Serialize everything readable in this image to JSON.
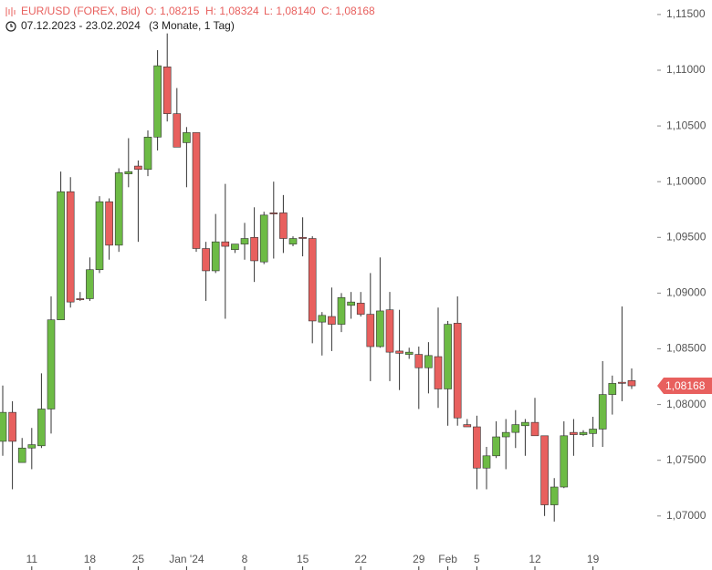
{
  "chart_data": {
    "type": "candlestick",
    "header": {
      "symbol": "EUR/USD (FOREX, Bid)",
      "open": "O: 1,08215",
      "high": "H: 1,08324",
      "low": "L: 1,08140",
      "close": "C: 1,08168",
      "range": "07.12.2023 - 23.02.2024",
      "period": "(3 Monate, 1 Tag)"
    },
    "up_color": "#6dbb45",
    "down_color": "#e8605e",
    "categories": [
      null,
      null,
      null,
      "11",
      null,
      null,
      null,
      null,
      null,
      "18",
      null,
      null,
      null,
      null,
      "25",
      null,
      null,
      null,
      null,
      "Jan '24",
      null,
      null,
      null,
      null,
      null,
      "8",
      null,
      null,
      null,
      null,
      null,
      "15",
      null,
      null,
      null,
      null,
      null,
      "22",
      null,
      null,
      null,
      null,
      null,
      "29",
      null,
      null,
      "Feb",
      null,
      null,
      "5",
      null,
      null,
      null,
      null,
      null,
      "12",
      null,
      null,
      null,
      null,
      null,
      "19",
      null,
      null,
      null,
      null
    ],
    "open": [
      1.0767,
      1.0793,
      1.0748,
      1.0761,
      1.0763,
      1.0796,
      1.0876,
      1.0991,
      1.0895,
      1.0895,
      1.0921,
      1.0982,
      1.0943,
      1.1007,
      1.1014,
      1.1011,
      1.104,
      1.1103,
      1.1061,
      1.1035,
      1.1044,
      1.094,
      1.092,
      1.0946,
      1.0939,
      1.0944,
      1.095,
      1.0928,
      1.0972,
      1.0972,
      1.0944,
      1.095,
      1.0949,
      1.0874,
      1.0879,
      1.0872,
      1.0889,
      1.0891,
      1.0881,
      1.0852,
      1.0885,
      1.0848,
      1.0845,
      1.0845,
      1.0833,
      1.0843,
      1.0814,
      1.0873,
      1.0782,
      1.078,
      1.0743,
      1.0754,
      1.0771,
      1.0775,
      1.0781,
      1.0784,
      1.0772,
      1.071,
      1.0726,
      1.0775,
      1.0773,
      1.0774,
      1.0778,
      1.0809,
      1.082,
      1.08215
    ],
    "high": [
      1.0817,
      1.0803,
      1.077,
      1.0779,
      1.0828,
      1.0897,
      1.1009,
      1.1004,
      1.0901,
      1.0932,
      1.0987,
      1.0985,
      1.1012,
      1.1039,
      1.1019,
      1.1046,
      1.1118,
      1.1133,
      1.1084,
      1.1049,
      1.1044,
      1.0946,
      1.0971,
      1.0998,
      1.0944,
      1.0963,
      1.0977,
      1.0973,
      1.1,
      1.0988,
      1.0951,
      1.0968,
      1.0951,
      1.0883,
      1.0905,
      1.09,
      1.0901,
      1.0901,
      1.0918,
      1.0932,
      1.0901,
      1.0885,
      1.0851,
      1.0852,
      1.0856,
      1.0887,
      1.0875,
      1.0897,
      1.0787,
      1.079,
      1.0762,
      1.0785,
      1.0787,
      1.0795,
      1.0787,
      1.0806,
      1.0772,
      1.0734,
      1.0785,
      1.0787,
      1.0777,
      1.0789,
      1.0839,
      1.0826,
      1.0888,
      1.08324
    ],
    "low": [
      1.0754,
      1.0724,
      1.0748,
      1.0742,
      1.0761,
      1.0774,
      1.0876,
      1.0887,
      1.0893,
      1.0893,
      1.0918,
      1.093,
      1.0937,
      1.0995,
      1.0946,
      1.1005,
      1.1028,
      1.1054,
      1.1031,
      1.0995,
      1.0937,
      1.0893,
      1.0918,
      1.0877,
      1.0936,
      1.093,
      1.091,
      1.0926,
      1.0931,
      1.0936,
      1.0942,
      1.0933,
      1.0855,
      1.0844,
      1.0848,
      1.0865,
      1.0877,
      1.0879,
      1.0821,
      1.0851,
      1.0821,
      1.0813,
      1.0841,
      1.0796,
      1.081,
      1.0797,
      1.0781,
      1.0781,
      1.078,
      1.0724,
      1.0724,
      1.0752,
      1.0742,
      1.0761,
      1.0754,
      1.0772,
      1.07,
      1.0695,
      1.0725,
      1.0754,
      1.0772,
      1.0762,
      1.0762,
      1.0791,
      1.0803,
      1.0814
    ],
    "close": [
      1.0793,
      1.0767,
      1.0761,
      1.0764,
      1.0796,
      1.0876,
      1.0991,
      1.0892,
      1.0894,
      1.0921,
      1.0982,
      1.0943,
      1.1008,
      1.1009,
      1.1011,
      1.104,
      1.1104,
      1.1061,
      1.1031,
      1.1044,
      1.094,
      1.092,
      1.0946,
      1.0942,
      1.0944,
      1.0949,
      1.0929,
      1.097,
      1.0971,
      1.0949,
      1.0949,
      1.0949,
      1.0875,
      1.088,
      1.0872,
      1.0896,
      1.0892,
      1.0881,
      1.0852,
      1.0884,
      1.0847,
      1.0846,
      1.0847,
      1.0833,
      1.0844,
      1.0814,
      1.0872,
      1.0788,
      1.078,
      1.0743,
      1.0754,
      1.0771,
      1.0775,
      1.0782,
      1.0784,
      1.0772,
      1.071,
      1.0726,
      1.0772,
      1.0773,
      1.0775,
      1.0778,
      1.0809,
      1.0819,
      1.0819,
      1.08168
    ],
    "last_price": {
      "value": 1.08168,
      "label": "1,08168"
    },
    "ylim": [
      1.0672,
      1.1163
    ],
    "yticks": [
      {
        "value": 1.115,
        "label": "1,11500"
      },
      {
        "value": 1.11,
        "label": "1,11000"
      },
      {
        "value": 1.105,
        "label": "1,10500"
      },
      {
        "value": 1.1,
        "label": "1,10000"
      },
      {
        "value": 1.095,
        "label": "1,09500"
      },
      {
        "value": 1.09,
        "label": "1,09000"
      },
      {
        "value": 1.085,
        "label": "1,08500"
      },
      {
        "value": 1.08,
        "label": "1,08000"
      },
      {
        "value": 1.075,
        "label": "1,07500"
      },
      {
        "value": 1.07,
        "label": "1,07000"
      }
    ]
  }
}
